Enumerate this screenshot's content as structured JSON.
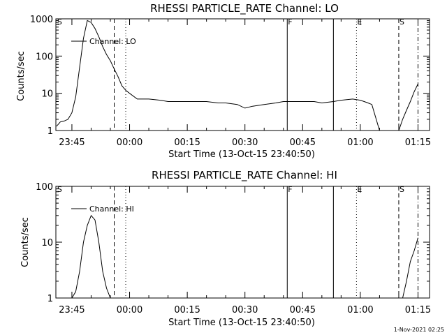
{
  "timestamp": "1-Nov-2021 02:25",
  "chart_data": [
    {
      "type": "line",
      "title": "RHESSI PARTICLE_RATE Channel: LO",
      "xlabel": "Start Time (13-Oct-15 23:40:50)",
      "ylabel": "Counts/sec",
      "y_scale": "log",
      "ylim": [
        1,
        1000
      ],
      "y_ticks": [
        "1",
        "10",
        "100",
        "1000"
      ],
      "x_ticks": [
        "23:45",
        "00:00",
        "00:15",
        "00:30",
        "00:45",
        "01:00",
        "01:15"
      ],
      "legend": "Channel: LO",
      "legend_position": "top-left",
      "markers": [
        {
          "label": "S",
          "x": "23:41",
          "style": "none"
        },
        {
          "label": "",
          "x": "23:56",
          "style": "dashed"
        },
        {
          "label": "",
          "x": "23:59",
          "style": "dotted"
        },
        {
          "label": "F",
          "x": "00:41",
          "style": "solid"
        },
        {
          "label": "",
          "x": "00:53",
          "style": "solid"
        },
        {
          "label": "E",
          "x": "00:59",
          "style": "dotted"
        },
        {
          "label": "S",
          "x": "01:10",
          "style": "dashed"
        },
        {
          "label": "",
          "x": "01:15",
          "style": "dashdot"
        }
      ],
      "series": [
        {
          "x": [
            "23:41",
            "23:42",
            "23:43",
            "23:44",
            "23:45",
            "23:46",
            "23:47",
            "23:48",
            "23:49",
            "23:50",
            "23:51",
            "23:52",
            "23:53",
            "23:54",
            "23:55",
            "23:56",
            "23:57",
            "23:58",
            "23:59",
            "00:00",
            "00:02",
            "00:05",
            "00:08",
            "00:10",
            "00:13",
            "00:15",
            "00:18",
            "00:20",
            "00:23",
            "00:25",
            "00:28",
            "00:30",
            "00:32",
            "00:35",
            "00:38",
            "00:40",
            "00:43",
            "00:45",
            "00:48",
            "00:50",
            "00:53",
            "00:55",
            "00:58",
            "01:00",
            "01:01",
            "01:02",
            "01:03",
            "01:05",
            "01:07",
            "01:09",
            "01:10",
            "01:11",
            "01:12",
            "01:13",
            "01:14",
            "01:15"
          ],
          "y": [
            1.3,
            1.7,
            1.8,
            2,
            3,
            8,
            50,
            300,
            900,
            800,
            550,
            330,
            180,
            110,
            75,
            45,
            28,
            16,
            12,
            10,
            7,
            7,
            6.5,
            6,
            6,
            6,
            6,
            6,
            5.5,
            5.5,
            5,
            4,
            4.5,
            5,
            5.5,
            6,
            6,
            6,
            6,
            5.5,
            6,
            6.5,
            7,
            6.5,
            6,
            5.5,
            5,
            1,
            1,
            1,
            1,
            2,
            3.5,
            6,
            11,
            18
          ]
        }
      ]
    },
    {
      "type": "line",
      "title": "RHESSI PARTICLE_RATE Channel: HI",
      "xlabel": "Start Time (13-Oct-15 23:40:50)",
      "ylabel": "Counts/sec",
      "y_scale": "log",
      "ylim": [
        1,
        100
      ],
      "y_ticks": [
        "1",
        "10",
        "100"
      ],
      "x_ticks": [
        "23:45",
        "00:00",
        "00:15",
        "00:30",
        "00:45",
        "01:00",
        "01:15"
      ],
      "legend": "Channel: HI",
      "legend_position": "top-left",
      "markers": [
        {
          "label": "S",
          "x": "23:41",
          "style": "none"
        },
        {
          "label": "",
          "x": "23:56",
          "style": "dashed"
        },
        {
          "label": "",
          "x": "23:59",
          "style": "dotted"
        },
        {
          "label": "F",
          "x": "00:41",
          "style": "solid"
        },
        {
          "label": "",
          "x": "00:53",
          "style": "solid"
        },
        {
          "label": "E",
          "x": "00:59",
          "style": "dotted"
        },
        {
          "label": "S",
          "x": "01:10",
          "style": "dashed"
        },
        {
          "label": "",
          "x": "01:15",
          "style": "dashdot"
        }
      ],
      "series": [
        {
          "x": [
            "23:45",
            "23:46",
            "23:47",
            "23:48",
            "23:49",
            "23:50",
            "23:51",
            "23:52",
            "23:53",
            "23:54",
            "23:55",
            "23:56",
            "01:11",
            "01:12",
            "01:13",
            "01:14",
            "01:15"
          ],
          "y": [
            1,
            1.3,
            3,
            10,
            20,
            30,
            25,
            10,
            3,
            1.5,
            1,
            1,
            1,
            2,
            4.5,
            7,
            12
          ]
        }
      ]
    }
  ]
}
